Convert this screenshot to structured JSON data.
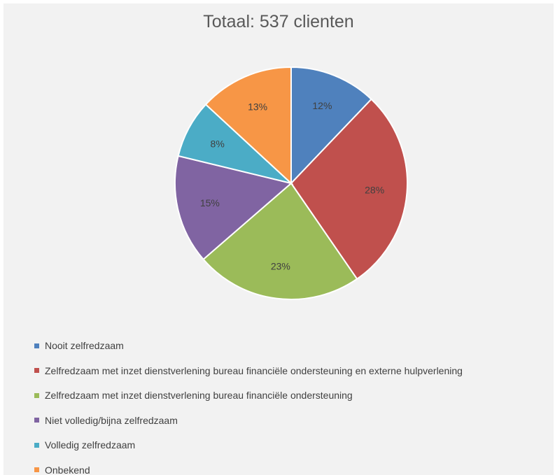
{
  "chart_data": {
    "type": "pie",
    "title": "Totaal: 537 clienten",
    "slices": [
      {
        "label": "Nooit zelfredzaam",
        "value": 12,
        "display": "12%",
        "color": "#4f81bd"
      },
      {
        "label": "Zelfredzaam met inzet dienstverlening bureau financiële ondersteuning en externe hulpverlening",
        "value": 28,
        "display": "28%",
        "color": "#c0504d"
      },
      {
        "label": "Zelfredzaam met inzet dienstverlening bureau financiële ondersteuning",
        "value": 23,
        "display": "23%",
        "color": "#9bbb59"
      },
      {
        "label": "Niet volledig/bijna zelfredzaam",
        "value": 15,
        "display": "15%",
        "color": "#8064a2"
      },
      {
        "label": "Volledig zelfredzaam",
        "value": 8,
        "display": "8%",
        "color": "#4bacc6"
      },
      {
        "label": "Onbekend",
        "value": 13,
        "display": "13%",
        "color": "#f79646"
      }
    ],
    "legend_position": "bottom"
  }
}
